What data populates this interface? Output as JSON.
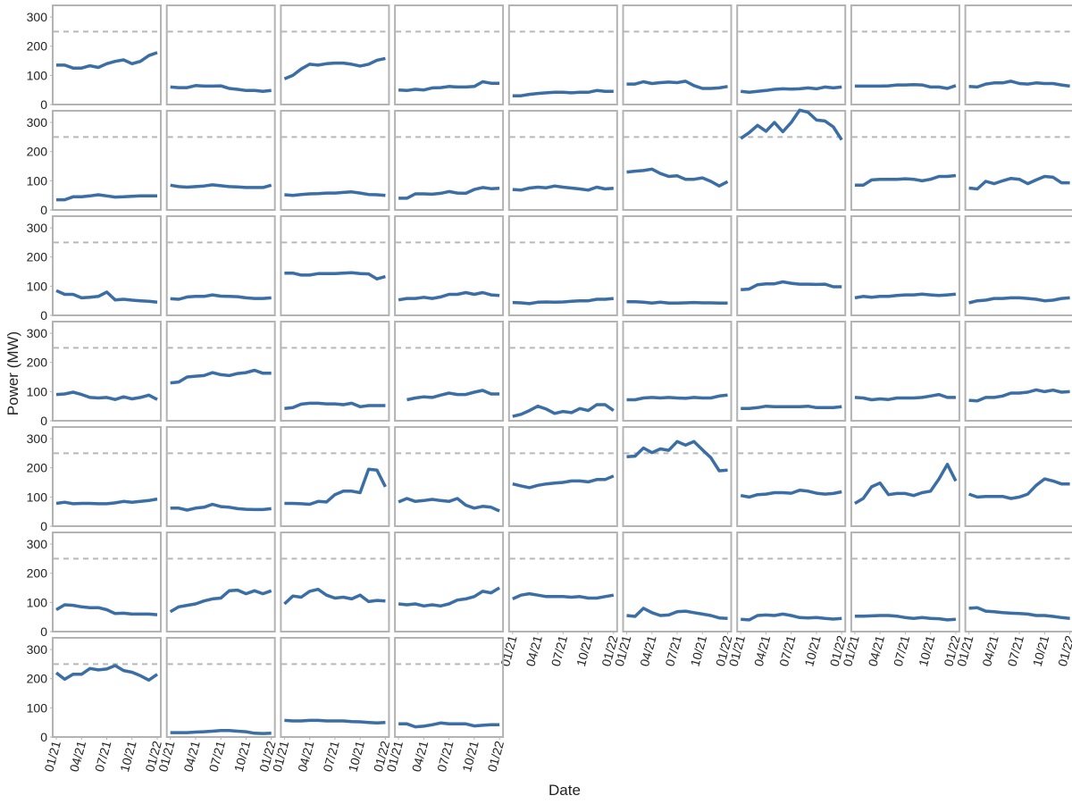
{
  "chart_data": {
    "type": "line",
    "xlabel": "Date",
    "ylabel": "Power (MW)",
    "color": "#3a6ea5",
    "hline": 250,
    "hline_color": "#b8b8b8",
    "columns": 9,
    "x": [
      "01/21",
      "02/21",
      "03/21",
      "04/21",
      "05/21",
      "06/21",
      "07/21",
      "08/21",
      "09/21",
      "10/21",
      "11/21",
      "12/21",
      "01/22"
    ],
    "xticks": [
      "01/21",
      "04/21",
      "07/21",
      "10/21",
      "01/22"
    ],
    "ylim": [
      0,
      340
    ],
    "yticks": [
      0,
      100,
      200,
      300
    ],
    "series": [
      {
        "values": [
          135,
          135,
          125,
          125,
          133,
          127,
          140,
          148,
          153,
          140,
          148,
          168,
          178
        ]
      },
      {
        "values": [
          60,
          58,
          58,
          65,
          63,
          63,
          64,
          55,
          52,
          48,
          48,
          45,
          48
        ]
      },
      {
        "values": [
          88,
          100,
          122,
          138,
          135,
          140,
          142,
          142,
          138,
          132,
          138,
          152,
          158
        ]
      },
      {
        "values": [
          50,
          48,
          52,
          50,
          57,
          58,
          62,
          60,
          60,
          62,
          78,
          73,
          73
        ]
      },
      {
        "values": [
          30,
          30,
          35,
          38,
          40,
          42,
          42,
          40,
          42,
          42,
          48,
          45,
          45
        ]
      },
      {
        "values": [
          70,
          70,
          78,
          72,
          75,
          77,
          75,
          80,
          65,
          55,
          55,
          57,
          62
        ]
      },
      {
        "values": [
          45,
          42,
          45,
          48,
          52,
          54,
          53,
          54,
          57,
          54,
          60,
          57,
          60
        ]
      },
      {
        "values": [
          63,
          63,
          63,
          63,
          64,
          67,
          67,
          68,
          67,
          60,
          60,
          55,
          65
        ]
      },
      {
        "values": [
          62,
          60,
          70,
          74,
          74,
          80,
          72,
          70,
          74,
          72,
          72,
          67,
          63
        ]
      },
      {
        "values": [
          35,
          35,
          45,
          45,
          48,
          52,
          48,
          44,
          45,
          47,
          48,
          48,
          48
        ]
      },
      {
        "values": [
          85,
          80,
          78,
          80,
          82,
          86,
          83,
          80,
          79,
          77,
          77,
          77,
          85
        ]
      },
      {
        "values": [
          52,
          50,
          53,
          55,
          56,
          58,
          58,
          60,
          62,
          58,
          53,
          52,
          50
        ]
      },
      {
        "values": [
          40,
          40,
          55,
          55,
          54,
          57,
          63,
          58,
          57,
          70,
          77,
          73,
          74
        ]
      },
      {
        "values": [
          70,
          68,
          75,
          78,
          76,
          82,
          78,
          75,
          72,
          68,
          78,
          72,
          74
        ]
      },
      {
        "values": [
          130,
          133,
          135,
          140,
          125,
          115,
          117,
          105,
          105,
          110,
          98,
          82,
          97
        ]
      },
      {
        "values": [
          245,
          265,
          290,
          270,
          300,
          268,
          300,
          342,
          335,
          308,
          305,
          285,
          240
        ]
      },
      {
        "values": [
          85,
          85,
          103,
          105,
          105,
          105,
          107,
          105,
          100,
          105,
          115,
          115,
          118
        ]
      },
      {
        "values": [
          75,
          72,
          98,
          90,
          100,
          108,
          105,
          90,
          103,
          115,
          112,
          93,
          93
        ]
      },
      {
        "values": [
          85,
          72,
          72,
          60,
          62,
          65,
          80,
          53,
          55,
          52,
          50,
          48,
          45
        ]
      },
      {
        "values": [
          57,
          55,
          63,
          65,
          65,
          70,
          66,
          65,
          64,
          60,
          58,
          58,
          60
        ]
      },
      {
        "values": [
          145,
          145,
          138,
          138,
          143,
          143,
          143,
          145,
          146,
          143,
          142,
          125,
          133
        ]
      },
      {
        "values": [
          53,
          58,
          58,
          62,
          58,
          63,
          72,
          72,
          78,
          72,
          78,
          70,
          68
        ]
      },
      {
        "values": [
          44,
          43,
          40,
          45,
          46,
          45,
          46,
          48,
          50,
          50,
          55,
          55,
          58
        ]
      },
      {
        "values": [
          47,
          47,
          45,
          42,
          45,
          42,
          42,
          43,
          44,
          43,
          43,
          42,
          42
        ]
      },
      {
        "values": [
          88,
          90,
          105,
          108,
          108,
          115,
          110,
          107,
          107,
          106,
          107,
          98,
          98
        ]
      },
      {
        "values": [
          60,
          65,
          62,
          65,
          65,
          68,
          70,
          70,
          73,
          70,
          68,
          70,
          73
        ]
      },
      {
        "values": [
          43,
          50,
          52,
          58,
          58,
          60,
          60,
          58,
          55,
          50,
          52,
          58,
          60
        ]
      },
      {
        "values": [
          90,
          92,
          98,
          90,
          80,
          78,
          80,
          73,
          82,
          75,
          80,
          88,
          73
        ]
      },
      {
        "values": [
          130,
          133,
          150,
          153,
          155,
          165,
          158,
          155,
          162,
          165,
          173,
          163,
          163
        ]
      },
      {
        "values": [
          42,
          45,
          57,
          60,
          60,
          58,
          58,
          55,
          60,
          48,
          52,
          52,
          52
        ]
      },
      {
        "values": [
          null,
          72,
          78,
          82,
          80,
          88,
          95,
          90,
          90,
          98,
          104,
          92,
          92
        ]
      },
      {
        "values": [
          15,
          22,
          35,
          50,
          40,
          25,
          32,
          28,
          42,
          35,
          55,
          55,
          35
        ]
      },
      {
        "values": [
          72,
          72,
          78,
          80,
          78,
          80,
          78,
          77,
          80,
          78,
          78,
          85,
          88
        ]
      },
      {
        "values": [
          42,
          42,
          45,
          50,
          48,
          48,
          48,
          48,
          50,
          45,
          45,
          45,
          48
        ]
      },
      {
        "values": [
          80,
          78,
          72,
          75,
          73,
          78,
          78,
          78,
          80,
          85,
          90,
          80,
          80
        ]
      },
      {
        "values": [
          70,
          68,
          80,
          80,
          85,
          95,
          95,
          98,
          106,
          100,
          105,
          98,
          100
        ]
      },
      {
        "values": [
          78,
          82,
          77,
          78,
          78,
          77,
          77,
          80,
          85,
          82,
          85,
          88,
          93
        ]
      },
      {
        "values": [
          62,
          62,
          55,
          62,
          65,
          75,
          67,
          65,
          60,
          58,
          57,
          57,
          60
        ]
      },
      {
        "values": [
          78,
          78,
          77,
          75,
          85,
          83,
          108,
          120,
          120,
          115,
          195,
          192,
          135
        ]
      },
      {
        "values": [
          83,
          95,
          85,
          88,
          92,
          88,
          85,
          95,
          72,
          62,
          68,
          65,
          52
        ]
      },
      {
        "values": [
          145,
          138,
          132,
          140,
          145,
          148,
          150,
          155,
          155,
          152,
          160,
          160,
          172
        ]
      },
      {
        "values": [
          238,
          240,
          268,
          252,
          265,
          260,
          290,
          278,
          290,
          262,
          235,
          190,
          192
        ]
      },
      {
        "values": [
          105,
          100,
          108,
          110,
          115,
          115,
          113,
          123,
          120,
          113,
          110,
          112,
          118
        ]
      },
      {
        "values": [
          78,
          95,
          135,
          148,
          108,
          112,
          112,
          105,
          115,
          120,
          162,
          212,
          155
        ]
      },
      {
        "values": [
          110,
          100,
          102,
          102,
          102,
          95,
          100,
          110,
          140,
          162,
          155,
          145,
          145
        ]
      },
      {
        "values": [
          75,
          92,
          90,
          85,
          82,
          82,
          75,
          62,
          63,
          60,
          60,
          60,
          58
        ]
      },
      {
        "values": [
          68,
          85,
          90,
          95,
          105,
          112,
          115,
          140,
          142,
          130,
          140,
          130,
          140
        ]
      },
      {
        "values": [
          95,
          122,
          118,
          138,
          145,
          125,
          115,
          118,
          112,
          125,
          103,
          107,
          105
        ]
      },
      {
        "values": [
          95,
          92,
          95,
          88,
          92,
          88,
          95,
          108,
          112,
          120,
          138,
          133,
          150
        ]
      },
      {
        "values": [
          112,
          125,
          130,
          125,
          120,
          120,
          120,
          118,
          120,
          115,
          115,
          120,
          125
        ]
      },
      {
        "values": [
          55,
          52,
          80,
          65,
          55,
          57,
          68,
          70,
          65,
          60,
          55,
          47,
          45
        ]
      },
      {
        "values": [
          42,
          40,
          55,
          57,
          55,
          60,
          55,
          48,
          47,
          48,
          45,
          43,
          45
        ]
      },
      {
        "values": [
          53,
          53,
          54,
          55,
          55,
          53,
          48,
          45,
          48,
          45,
          44,
          40,
          42
        ]
      },
      {
        "values": [
          80,
          82,
          70,
          68,
          65,
          63,
          62,
          60,
          55,
          55,
          52,
          48,
          45
        ]
      },
      {
        "values": [
          220,
          198,
          215,
          215,
          235,
          230,
          233,
          245,
          228,
          222,
          210,
          195,
          215
        ]
      },
      {
        "values": [
          15,
          15,
          15,
          17,
          18,
          20,
          22,
          22,
          20,
          18,
          13,
          12,
          13
        ]
      },
      {
        "values": [
          57,
          55,
          55,
          57,
          57,
          55,
          55,
          55,
          53,
          52,
          50,
          48,
          50
        ]
      },
      {
        "values": [
          45,
          45,
          35,
          37,
          42,
          48,
          45,
          45,
          45,
          38,
          40,
          42,
          42
        ]
      }
    ]
  }
}
